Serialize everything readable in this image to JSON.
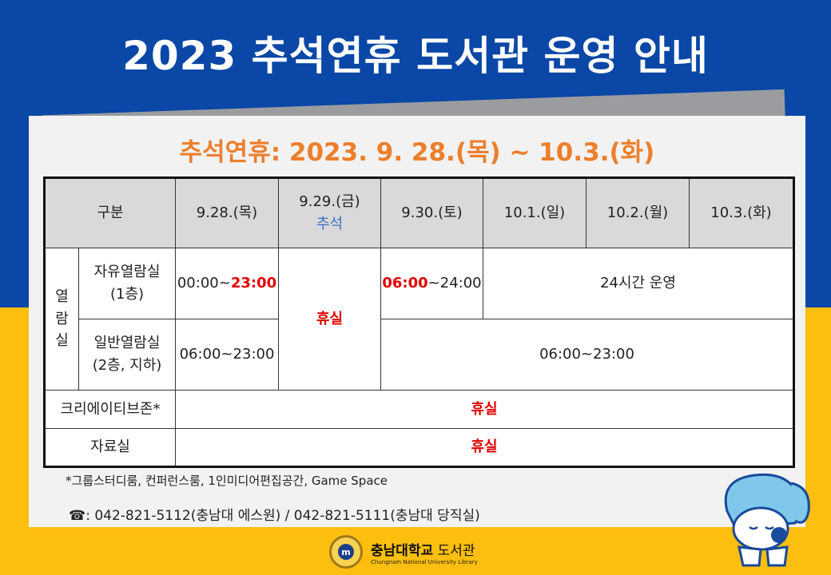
{
  "header": {
    "title": "2023 추석연휴 도서관 운영 안내"
  },
  "card": {
    "subtitle": "추석연휴: 2023. 9. 28.(목) ~ 10.3.(화)"
  },
  "table": {
    "headers": {
      "category": "구분",
      "d1": "9.28.(목)",
      "d2": "9.29.(금)",
      "d2_note": "추석",
      "d3": "9.30.(토)",
      "d4": "10.1.(일)",
      "d5": "10.2.(월)",
      "d6": "10.3.(화)"
    },
    "group": {
      "label_1": "열",
      "label_2": "람",
      "label_3": "실"
    },
    "free_room": {
      "name_1": "자유열람실",
      "name_2": "(1층)",
      "d1_start": "00:00~",
      "d1_end": "23:00",
      "d2": "휴실",
      "d3_start": "06:00",
      "d3_end": "~24:00",
      "rest": "24시간 운영"
    },
    "general_room": {
      "name_1": "일반열람실",
      "name_2": "(2층, 지하)",
      "d1": "06:00~23:00",
      "rest": "06:00~23:00"
    },
    "creative_zone": {
      "name": "크리에이티브존*",
      "all": "휴실"
    },
    "archive": {
      "name": "자료실",
      "all": "휴실"
    }
  },
  "footnote": "*그룹스터디룸, 컨퍼런스룸, 1인미디어편집공간, Game Space",
  "contact": {
    "icon": "phone-icon",
    "text": ": 042-821-5112(충남대 에스원) / 042-821-5111(충남대 당직실)"
  },
  "logo": {
    "main_1": "충남대학교",
    "main_2": " 도서관",
    "sub": "Chungnam National University  Library"
  },
  "colors": {
    "blue": "#0a47a6",
    "yellow": "#fdbf0f",
    "orange": "#ec7f2c",
    "red": "#e00000"
  }
}
